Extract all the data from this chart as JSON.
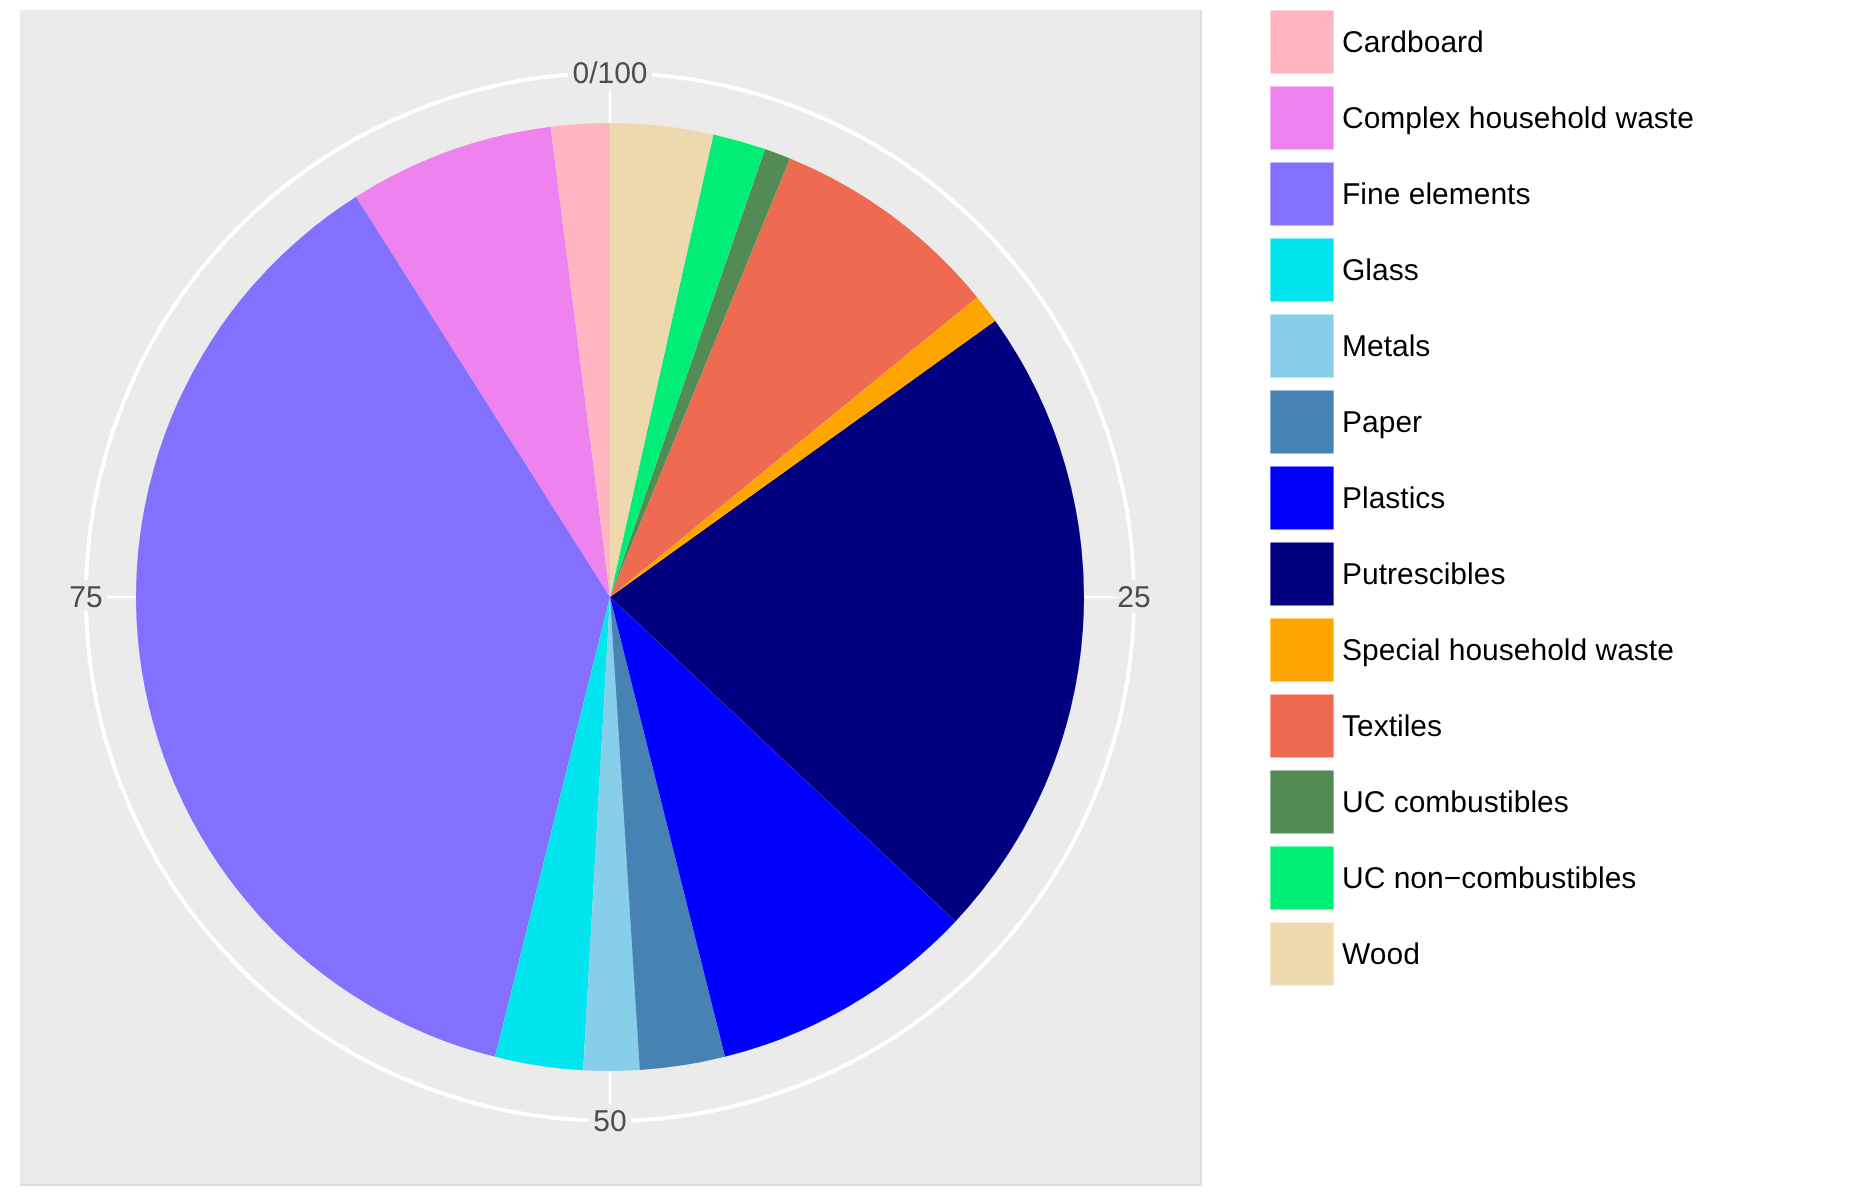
{
  "chart_data": {
    "type": "pie",
    "categories": [
      "Cardboard",
      "Complex household waste",
      "Fine elements",
      "Glass",
      "Metals",
      "Paper",
      "Plastics",
      "Putrescibles",
      "Special household waste",
      "Textiles",
      "UC combustibles",
      "UC non−combustibles",
      "Wood"
    ],
    "values": [
      2.0,
      7.0,
      37.1,
      3.0,
      1.9,
      2.9,
      9.1,
      21.9,
      1.0,
      7.9,
      0.9,
      1.8,
      3.5
    ],
    "colors": [
      "#ffb6c1",
      "#ee82ee",
      "#8470ff",
      "#00e5ee",
      "#87ceeb",
      "#4682b4",
      "#0000ff",
      "#000080",
      "#ffa500",
      "#ee6a50",
      "#548b54",
      "#00ee76",
      "#eed8ae"
    ],
    "annotations": [
      "0/100",
      "25",
      "50",
      "75"
    ],
    "grid": true,
    "legend": "right"
  }
}
